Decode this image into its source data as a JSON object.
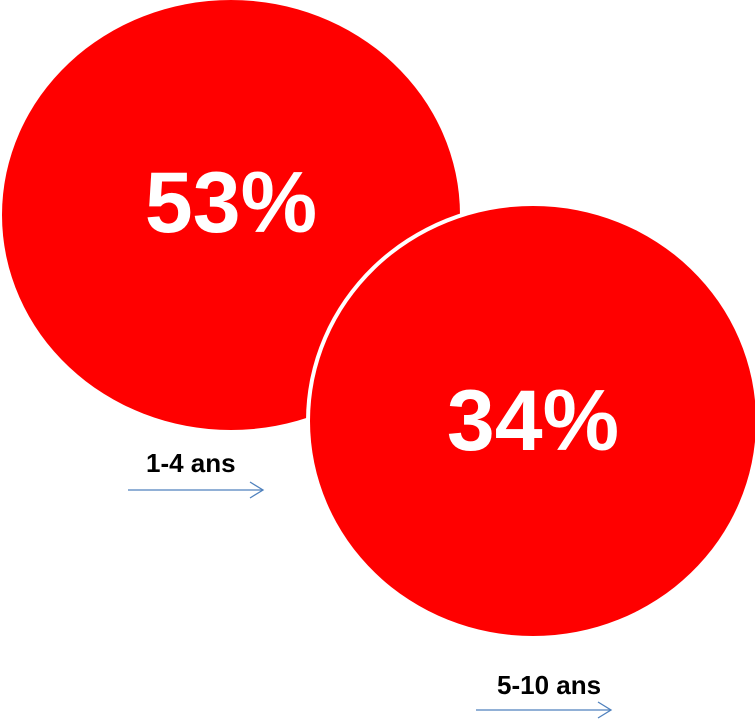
{
  "chart_data": {
    "type": "bubble",
    "title": "",
    "series": [
      {
        "label": "1-4 ans",
        "value": 53,
        "display": "53%",
        "color": "#ff0000"
      },
      {
        "label": "5-10 ans",
        "value": 34,
        "display": "34%",
        "color": "#ff0000"
      }
    ],
    "arrow_color": "#4f81bd"
  }
}
